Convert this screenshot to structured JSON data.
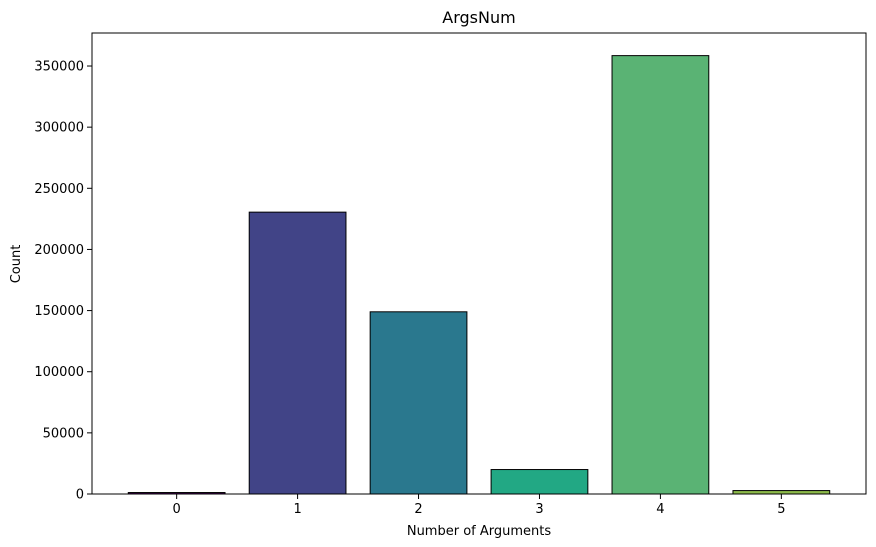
{
  "chart_data": {
    "type": "bar",
    "title": "ArgsNum",
    "xlabel": "Number of Arguments",
    "ylabel": "Count",
    "categories": [
      "0",
      "1",
      "2",
      "3",
      "4",
      "5"
    ],
    "values": [
      1200,
      230500,
      149000,
      20000,
      358500,
      2800
    ],
    "colors": [
      "#440154",
      "#414487",
      "#2a788e",
      "#22a884",
      "#5ab374",
      "#8cba4a"
    ],
    "edge_color": "#000000",
    "ylim": [
      0,
      377000
    ],
    "yticks": [
      0,
      50000,
      100000,
      150000,
      200000,
      250000,
      300000,
      350000
    ],
    "grid": false,
    "legend": "none"
  }
}
